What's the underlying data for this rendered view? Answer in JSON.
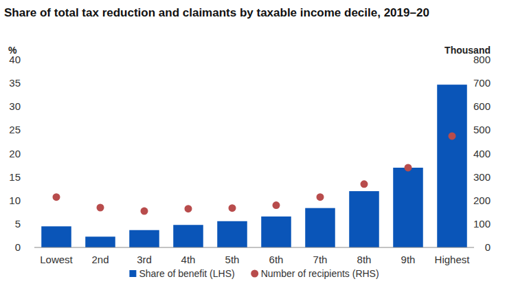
{
  "chart_data": {
    "type": "bar",
    "title": "Share of total tax reduction and claimants by taxable income decile, 2019–20",
    "y_label": "%",
    "y2_label": "Thousand",
    "categories": [
      "Lowest",
      "2nd",
      "3rd",
      "4th",
      "5th",
      "6th",
      "7th",
      "8th",
      "9th",
      "Highest"
    ],
    "series": [
      {
        "name": "Share of benefit (LHS)",
        "type": "bar",
        "color": "#0a55b8",
        "values": [
          4.5,
          2.3,
          3.7,
          4.8,
          5.6,
          6.6,
          8.4,
          12.0,
          17.0,
          34.7
        ]
      },
      {
        "name": "Number of recipients (RHS)",
        "type": "scatter",
        "axis": "y2",
        "color": "#b84c4c",
        "marker": "circle",
        "values": [
          215,
          170,
          155,
          165,
          168,
          180,
          215,
          270,
          340,
          475
        ]
      }
    ],
    "ylim": [
      0,
      40
    ],
    "yticks": [
      0,
      5,
      10,
      15,
      20,
      25,
      30,
      35,
      40
    ],
    "y2lim": [
      0,
      800
    ],
    "y2ticks": [
      0,
      100,
      200,
      300,
      400,
      500,
      600,
      700,
      800
    ],
    "grid": false,
    "legend": "bottom"
  }
}
